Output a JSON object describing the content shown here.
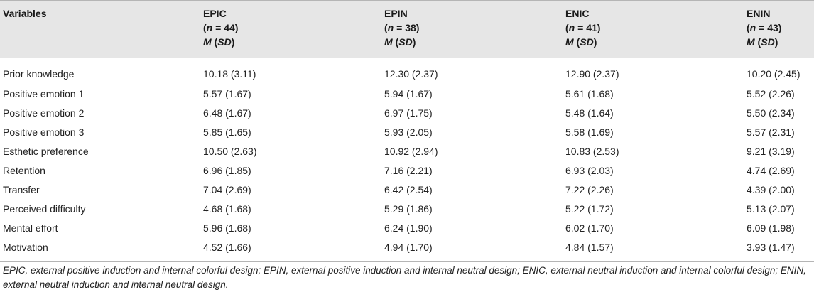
{
  "table": {
    "headers": [
      {
        "lines": [
          "Variables"
        ]
      },
      {
        "lines": [
          "EPIC",
          "(n = 44)",
          "M (SD)"
        ]
      },
      {
        "lines": [
          "EPIN",
          "(n = 38)",
          "M (SD)"
        ]
      },
      {
        "lines": [
          "ENIC",
          "(n = 41)",
          "M (SD)"
        ]
      },
      {
        "lines": [
          "ENIN",
          "(n = 43)",
          "M (SD)"
        ]
      }
    ],
    "rows": [
      [
        "Prior knowledge",
        "10.18 (3.11)",
        "12.30 (2.37)",
        "12.90 (2.37)",
        "10.20 (2.45)"
      ],
      [
        "Positive emotion 1",
        "5.57 (1.67)",
        "5.94 (1.67)",
        "5.61 (1.68)",
        "5.52 (2.26)"
      ],
      [
        "Positive emotion 2",
        "6.48 (1.67)",
        "6.97 (1.75)",
        "5.48 (1.64)",
        "5.50 (2.34)"
      ],
      [
        "Positive emotion 3",
        "5.85 (1.65)",
        "5.93 (2.05)",
        "5.58 (1.69)",
        "5.57 (2.31)"
      ],
      [
        "Esthetic preference",
        "10.50 (2.63)",
        "10.92 (2.94)",
        "10.83 (2.53)",
        "9.21 (3.19)"
      ],
      [
        "Retention",
        "6.96 (1.85)",
        "7.16 (2.21)",
        "6.93 (2.03)",
        "4.74 (2.69)"
      ],
      [
        "Transfer",
        "7.04 (2.69)",
        "6.42 (2.54)",
        "7.22 (2.26)",
        "4.39 (2.00)"
      ],
      [
        "Perceived difficulty",
        "4.68 (1.68)",
        "5.29 (1.86)",
        "5.22 (1.72)",
        "5.13 (2.07)"
      ],
      [
        "Mental effort",
        "5.96 (1.68)",
        "6.24 (1.90)",
        "6.02 (1.70)",
        "6.09 (1.98)"
      ],
      [
        "Motivation",
        "4.52 (1.66)",
        "4.94 (1.70)",
        "4.84 (1.57)",
        "3.93 (1.47)"
      ]
    ]
  },
  "footnote": "EPIC, external positive induction and internal colorful design; EPIN, external positive induction and internal neutral design; ENIC, external neutral induction and internal colorful design; ENIN, external neutral induction and internal neutral design.",
  "colors": {
    "header_bg": "#e6e6e6",
    "rule": "#b5b5b5",
    "text": "#222222"
  }
}
